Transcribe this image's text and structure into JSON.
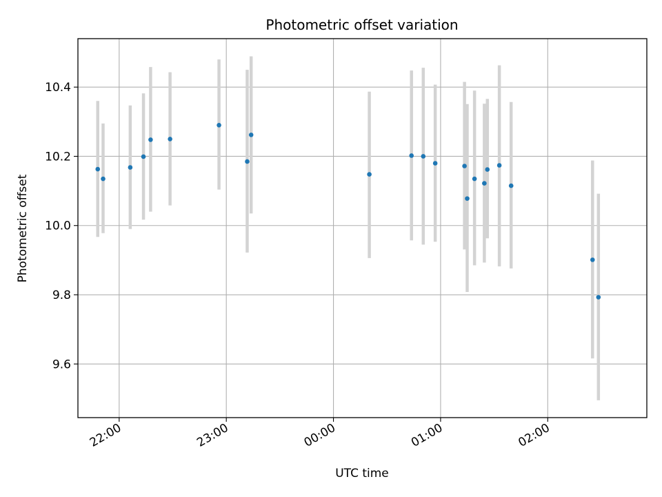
{
  "chart_data": {
    "type": "scatter",
    "title": "Photometric offset variation",
    "xlabel": "UTC time",
    "ylabel": "Photometric offset",
    "x_axis": {
      "scale": "time",
      "unit": "minutes after 21:00 UTC (day 1); values above 180 continue past midnight",
      "min": 36.9,
      "max": 355.5,
      "ticks": [
        {
          "value": 60,
          "label": "22:00"
        },
        {
          "value": 120,
          "label": "23:00"
        },
        {
          "value": 180,
          "label": "00:00"
        },
        {
          "value": 240,
          "label": "01:00"
        },
        {
          "value": 300,
          "label": "02:00"
        }
      ]
    },
    "y_axis": {
      "min": 9.445,
      "max": 10.54,
      "ticks": [
        {
          "value": 9.6,
          "label": "9.6"
        },
        {
          "value": 9.8,
          "label": "9.8"
        },
        {
          "value": 10.0,
          "label": "10.0"
        },
        {
          "value": 10.2,
          "label": "10.2"
        },
        {
          "value": 10.4,
          "label": "10.4"
        }
      ]
    },
    "grid": true,
    "colors": {
      "point": "#1f77b4",
      "errorbar": "#d3d3d3",
      "grid": "#b0b0b0"
    },
    "points": [
      {
        "t": "21:48",
        "x": 48.0,
        "y": 10.163,
        "lo": 9.967,
        "hi": 10.36
      },
      {
        "t": "21:51",
        "x": 51.0,
        "y": 10.135,
        "lo": 9.978,
        "hi": 10.295
      },
      {
        "t": "22:06",
        "x": 66.2,
        "y": 10.168,
        "lo": 9.99,
        "hi": 10.347
      },
      {
        "t": "22:13",
        "x": 73.6,
        "y": 10.199,
        "lo": 10.017,
        "hi": 10.382
      },
      {
        "t": "22:17",
        "x": 77.6,
        "y": 10.248,
        "lo": 10.04,
        "hi": 10.458
      },
      {
        "t": "22:28",
        "x": 88.5,
        "y": 10.25,
        "lo": 10.058,
        "hi": 10.443
      },
      {
        "t": "22:55",
        "x": 115.9,
        "y": 10.29,
        "lo": 10.104,
        "hi": 10.48
      },
      {
        "t": "23:11",
        "x": 131.7,
        "y": 10.185,
        "lo": 9.922,
        "hi": 10.45
      },
      {
        "t": "23:14",
        "x": 133.9,
        "y": 10.262,
        "lo": 10.035,
        "hi": 10.489
      },
      {
        "t": "00:20",
        "x": 200.1,
        "y": 10.148,
        "lo": 9.906,
        "hi": 10.387
      },
      {
        "t": "00:43",
        "x": 223.7,
        "y": 10.202,
        "lo": 9.957,
        "hi": 10.448
      },
      {
        "t": "00:50",
        "x": 230.3,
        "y": 10.2,
        "lo": 9.945,
        "hi": 10.456
      },
      {
        "t": "00:57",
        "x": 237.0,
        "y": 10.18,
        "lo": 9.953,
        "hi": 10.407
      },
      {
        "t": "01:13",
        "x": 253.4,
        "y": 10.172,
        "lo": 9.931,
        "hi": 10.415
      },
      {
        "t": "01:15",
        "x": 254.9,
        "y": 10.078,
        "lo": 9.808,
        "hi": 10.351
      },
      {
        "t": "01:19",
        "x": 259.0,
        "y": 10.135,
        "lo": 9.885,
        "hi": 10.39
      },
      {
        "t": "01:24",
        "x": 264.5,
        "y": 10.122,
        "lo": 9.893,
        "hi": 10.352
      },
      {
        "t": "01:26",
        "x": 266.2,
        "y": 10.162,
        "lo": 9.963,
        "hi": 10.366
      },
      {
        "t": "01:33",
        "x": 272.9,
        "y": 10.174,
        "lo": 9.882,
        "hi": 10.463
      },
      {
        "t": "01:39",
        "x": 279.5,
        "y": 10.115,
        "lo": 9.876,
        "hi": 10.357
      },
      {
        "t": "02:25",
        "x": 325.1,
        "y": 9.901,
        "lo": 9.616,
        "hi": 10.188
      },
      {
        "t": "02:28",
        "x": 328.4,
        "y": 9.793,
        "lo": 9.495,
        "hi": 10.092
      }
    ]
  }
}
